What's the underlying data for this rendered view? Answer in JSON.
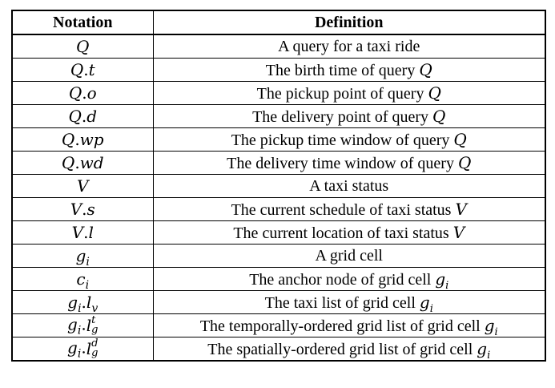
{
  "table": {
    "headers": {
      "notation": "Notation",
      "definition": "Definition"
    },
    "rows": [
      {
        "symbol": "Q",
        "definition_prefix": "A query for a taxi ride",
        "definition_var": "",
        "definition_var_sub": ""
      },
      {
        "symbol": "Q.t",
        "definition_prefix": "The birth time of query",
        "definition_var": "Q",
        "definition_var_sub": ""
      },
      {
        "symbol": "Q.o",
        "definition_prefix": "The pickup point of query",
        "definition_var": "Q",
        "definition_var_sub": ""
      },
      {
        "symbol": "Q.d",
        "definition_prefix": "The delivery point of query",
        "definition_var": "Q",
        "definition_var_sub": ""
      },
      {
        "symbol": "Q.wp",
        "definition_prefix": "The pickup time window of query",
        "definition_var": "Q",
        "definition_var_sub": ""
      },
      {
        "symbol": "Q.wd",
        "definition_prefix": "The delivery time window of query",
        "definition_var": "Q",
        "definition_var_sub": ""
      },
      {
        "symbol": "V",
        "definition_prefix": "A taxi status",
        "definition_var": "",
        "definition_var_sub": ""
      },
      {
        "symbol": "V.s",
        "definition_prefix": "The current schedule of taxi status",
        "definition_var": "V",
        "definition_var_sub": ""
      },
      {
        "symbol": "V.l",
        "definition_prefix": "The current location of taxi status",
        "definition_var": "V",
        "definition_var_sub": ""
      },
      {
        "symbol": "g_i",
        "definition_prefix": "A grid cell",
        "definition_var": "",
        "definition_var_sub": ""
      },
      {
        "symbol": "c_i",
        "definition_prefix": "The anchor node of grid cell",
        "definition_var": "g",
        "definition_var_sub": "i"
      },
      {
        "symbol": "g_i.l_v",
        "definition_prefix": "The taxi list of grid cell",
        "definition_var": "g",
        "definition_var_sub": "i"
      },
      {
        "symbol": "g_i.l_g^t",
        "definition_prefix": "The temporally-ordered grid list of grid cell",
        "definition_var": "g",
        "definition_var_sub": "i"
      },
      {
        "symbol": "g_i.l_g^d",
        "definition_prefix": "The spatially-ordered grid list of grid cell",
        "definition_var": "g",
        "definition_var_sub": "i"
      }
    ]
  },
  "symbols": {
    "Q": "Q",
    "V": "V",
    "g": "g",
    "c": "c",
    "l": "l",
    "dot": ".",
    "t": "t",
    "o": "o",
    "d": "d",
    "wp": "wp",
    "wd": "wd",
    "s": "s",
    "i": "i",
    "v": "v"
  }
}
